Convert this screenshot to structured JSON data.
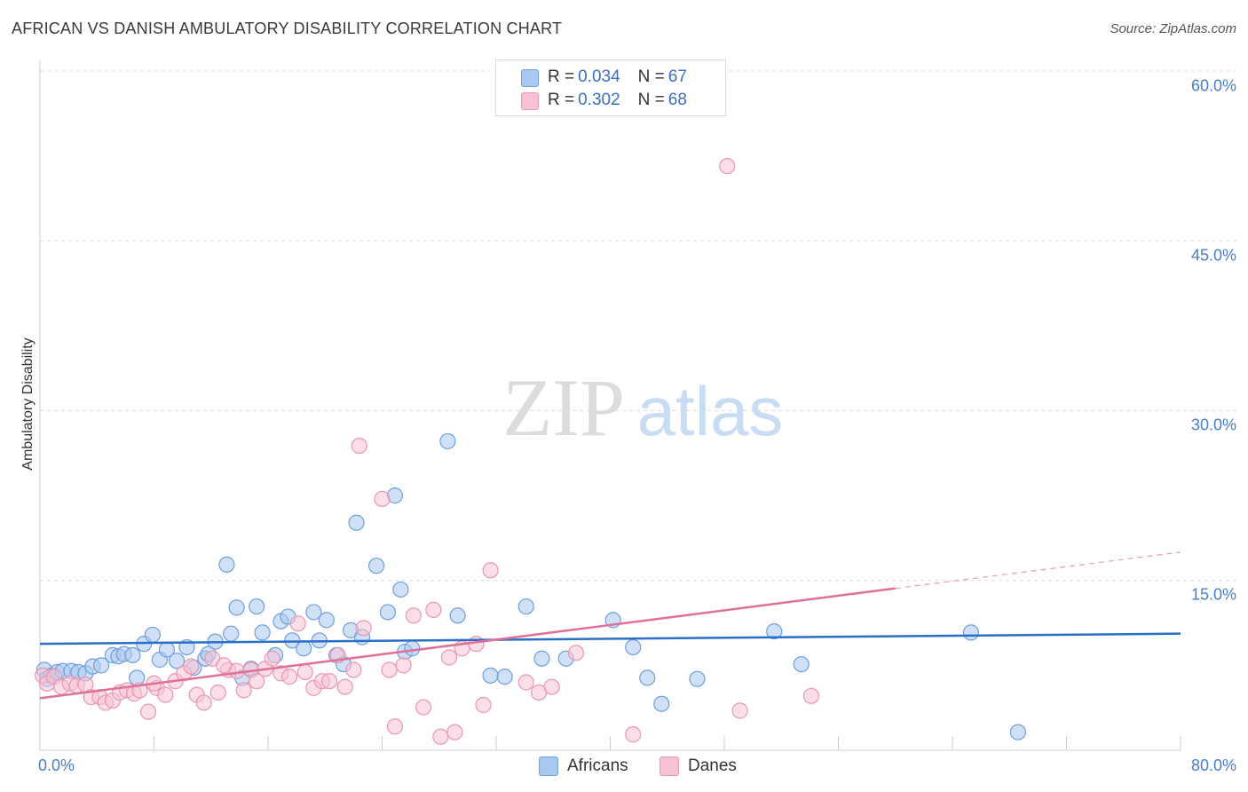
{
  "title": "AFRICAN VS DANISH AMBULATORY DISABILITY CORRELATION CHART",
  "source": "Source: ZipAtlas.com",
  "watermark": {
    "zip": "ZIP",
    "atlas": "atlas"
  },
  "colors": {
    "africans_fill": "#a9c8f0",
    "africans_stroke": "#6f9fdc",
    "africans_line": "#2a6fc9",
    "danes_fill": "#f7c3d3",
    "danes_stroke": "#e996b1",
    "danes_line": "#e0709a",
    "tick_label": "#4a7fc8",
    "grid": "#dddddd"
  },
  "legend": {
    "africans": {
      "r_label": "R = ",
      "r_value": "0.034",
      "n_label": "N = ",
      "n_value": "67"
    },
    "danes": {
      "r_label": "R = ",
      "r_value": "0.302",
      "n_label": "N = ",
      "n_value": "68"
    }
  },
  "chart_data": {
    "type": "scatter",
    "title": "AFRICAN VS DANISH AMBULATORY DISABILITY CORRELATION CHART",
    "xlabel": "",
    "ylabel": "Ambulatory Disability",
    "xlim": [
      0,
      80
    ],
    "ylim": [
      0,
      60
    ],
    "x_ticks_labels": [
      "0.0%",
      "80.0%"
    ],
    "y_ticks": [
      15,
      30,
      45,
      60
    ],
    "y_tick_labels": [
      "15.0%",
      "30.0%",
      "45.0%",
      "60.0%"
    ],
    "grid": true,
    "legend_position": "top-center",
    "series": [
      {
        "name": "Africans",
        "trend": {
          "x0": 0,
          "y0": 9.4,
          "x1": 80,
          "y1": 10.3
        },
        "points": [
          [
            0.3,
            7.1
          ],
          [
            0.5,
            6.3
          ],
          [
            0.8,
            6.6
          ],
          [
            1.2,
            6.9
          ],
          [
            1.6,
            7.0
          ],
          [
            2.2,
            7.0
          ],
          [
            2.7,
            6.9
          ],
          [
            3.2,
            6.8
          ],
          [
            3.7,
            7.4
          ],
          [
            4.3,
            7.5
          ],
          [
            5.1,
            8.4
          ],
          [
            5.5,
            8.3
          ],
          [
            5.9,
            8.5
          ],
          [
            6.5,
            8.4
          ],
          [
            6.8,
            6.4
          ],
          [
            7.3,
            9.4
          ],
          [
            7.9,
            10.2
          ],
          [
            8.4,
            8.0
          ],
          [
            8.9,
            8.9
          ],
          [
            9.6,
            7.9
          ],
          [
            10.3,
            9.1
          ],
          [
            10.8,
            7.3
          ],
          [
            11.6,
            8.1
          ],
          [
            11.8,
            8.5
          ],
          [
            12.3,
            9.6
          ],
          [
            13.1,
            16.4
          ],
          [
            13.4,
            10.3
          ],
          [
            13.8,
            12.6
          ],
          [
            14.2,
            6.4
          ],
          [
            14.8,
            7.2
          ],
          [
            15.2,
            12.7
          ],
          [
            15.6,
            10.4
          ],
          [
            16.5,
            8.4
          ],
          [
            16.9,
            11.4
          ],
          [
            17.4,
            11.8
          ],
          [
            17.7,
            9.7
          ],
          [
            18.5,
            9.0
          ],
          [
            19.2,
            12.2
          ],
          [
            19.6,
            9.7
          ],
          [
            20.1,
            11.5
          ],
          [
            20.8,
            8.4
          ],
          [
            21.3,
            7.6
          ],
          [
            21.8,
            10.6
          ],
          [
            22.2,
            20.1
          ],
          [
            22.6,
            10.0
          ],
          [
            23.6,
            16.3
          ],
          [
            24.4,
            12.2
          ],
          [
            24.9,
            22.5
          ],
          [
            25.3,
            14.2
          ],
          [
            25.6,
            8.7
          ],
          [
            26.1,
            9.0
          ],
          [
            28.6,
            27.3
          ],
          [
            29.3,
            11.9
          ],
          [
            31.6,
            6.6
          ],
          [
            32.6,
            6.5
          ],
          [
            34.1,
            12.7
          ],
          [
            35.2,
            8.1
          ],
          [
            36.9,
            8.1
          ],
          [
            40.2,
            11.5
          ],
          [
            41.6,
            9.1
          ],
          [
            42.6,
            6.4
          ],
          [
            43.6,
            4.1
          ],
          [
            46.1,
            6.3
          ],
          [
            51.5,
            10.5
          ],
          [
            53.4,
            7.6
          ],
          [
            65.3,
            10.4
          ],
          [
            68.6,
            1.6
          ]
        ]
      },
      {
        "name": "Danes",
        "trend": {
          "x0": 0,
          "y0": 4.6,
          "x1": 60,
          "y1": 14.3,
          "x_ext": 80,
          "y_ext": 17.5
        },
        "points": [
          [
            0.2,
            6.6
          ],
          [
            0.5,
            5.9
          ],
          [
            1.0,
            6.5
          ],
          [
            1.5,
            5.6
          ],
          [
            2.1,
            5.9
          ],
          [
            2.6,
            5.7
          ],
          [
            3.2,
            5.8
          ],
          [
            3.6,
            4.7
          ],
          [
            4.2,
            4.7
          ],
          [
            4.6,
            4.2
          ],
          [
            5.1,
            4.4
          ],
          [
            5.6,
            5.1
          ],
          [
            6.1,
            5.3
          ],
          [
            6.6,
            5.0
          ],
          [
            7.0,
            5.3
          ],
          [
            7.6,
            3.4
          ],
          [
            8.2,
            5.5
          ],
          [
            8.8,
            4.9
          ],
          [
            9.5,
            6.1
          ],
          [
            10.1,
            6.8
          ],
          [
            10.6,
            7.4
          ],
          [
            11.0,
            4.9
          ],
          [
            11.5,
            4.2
          ],
          [
            12.1,
            8.1
          ],
          [
            12.5,
            5.1
          ],
          [
            13.2,
            7.1
          ],
          [
            13.8,
            7.0
          ],
          [
            14.3,
            5.3
          ],
          [
            14.8,
            7.1
          ],
          [
            15.2,
            6.1
          ],
          [
            15.8,
            7.2
          ],
          [
            16.3,
            8.1
          ],
          [
            16.9,
            6.8
          ],
          [
            17.5,
            6.5
          ],
          [
            18.1,
            11.2
          ],
          [
            18.6,
            6.9
          ],
          [
            19.2,
            5.5
          ],
          [
            19.8,
            6.1
          ],
          [
            20.3,
            6.1
          ],
          [
            20.9,
            8.4
          ],
          [
            21.4,
            5.6
          ],
          [
            22.0,
            7.1
          ],
          [
            22.4,
            26.9
          ],
          [
            22.7,
            10.8
          ],
          [
            24.0,
            22.2
          ],
          [
            24.5,
            7.1
          ],
          [
            24.9,
            2.1
          ],
          [
            25.5,
            7.5
          ],
          [
            26.2,
            11.9
          ],
          [
            26.9,
            3.8
          ],
          [
            27.6,
            12.4
          ],
          [
            28.1,
            1.2
          ],
          [
            28.7,
            8.2
          ],
          [
            29.1,
            1.6
          ],
          [
            29.6,
            9.0
          ],
          [
            30.6,
            9.4
          ],
          [
            31.1,
            4.0
          ],
          [
            31.6,
            15.9
          ],
          [
            34.1,
            6.0
          ],
          [
            35.0,
            5.1
          ],
          [
            35.9,
            5.6
          ],
          [
            37.6,
            8.6
          ],
          [
            41.6,
            1.4
          ],
          [
            48.2,
            51.6
          ],
          [
            49.1,
            3.5
          ],
          [
            54.1,
            4.8
          ],
          [
            12.9,
            7.5
          ],
          [
            8.0,
            5.9
          ]
        ]
      }
    ]
  },
  "legend_bottom": {
    "africans_label": "Africans",
    "danes_label": "Danes"
  }
}
